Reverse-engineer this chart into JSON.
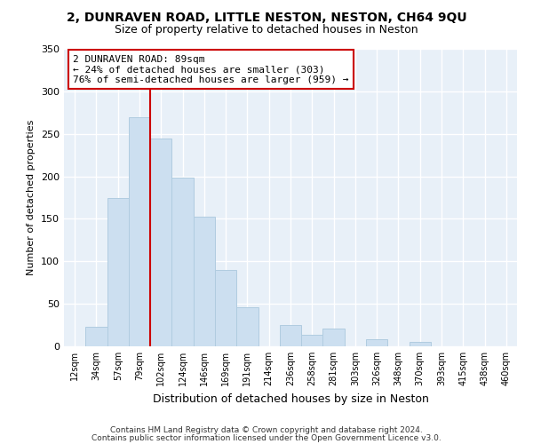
{
  "title": "2, DUNRAVEN ROAD, LITTLE NESTON, NESTON, CH64 9QU",
  "subtitle": "Size of property relative to detached houses in Neston",
  "xlabel": "Distribution of detached houses by size in Neston",
  "ylabel": "Number of detached properties",
  "bar_color": "#ccdff0",
  "bar_edge_color": "#b0cce0",
  "bin_labels": [
    "12sqm",
    "34sqm",
    "57sqm",
    "79sqm",
    "102sqm",
    "124sqm",
    "146sqm",
    "169sqm",
    "191sqm",
    "214sqm",
    "236sqm",
    "258sqm",
    "281sqm",
    "303sqm",
    "326sqm",
    "348sqm",
    "370sqm",
    "393sqm",
    "415sqm",
    "438sqm",
    "460sqm"
  ],
  "bar_heights": [
    0,
    23,
    175,
    270,
    245,
    198,
    153,
    90,
    46,
    0,
    25,
    14,
    21,
    0,
    8,
    0,
    5,
    0,
    0,
    0,
    0
  ],
  "ylim": [
    0,
    350
  ],
  "yticks": [
    0,
    50,
    100,
    150,
    200,
    250,
    300,
    350
  ],
  "property_line_bin_index": 3.5,
  "annotation_title": "2 DUNRAVEN ROAD: 89sqm",
  "annotation_line1": "← 24% of detached houses are smaller (303)",
  "annotation_line2": "76% of semi-detached houses are larger (959) →",
  "annotation_box_color": "#ffffff",
  "annotation_box_edge": "#cc0000",
  "property_line_color": "#cc0000",
  "footer1": "Contains HM Land Registry data © Crown copyright and database right 2024.",
  "footer2": "Contains public sector information licensed under the Open Government Licence v3.0.",
  "plot_bg_color": "#e8f0f8",
  "fig_bg_color": "#ffffff",
  "grid_color": "#ffffff"
}
